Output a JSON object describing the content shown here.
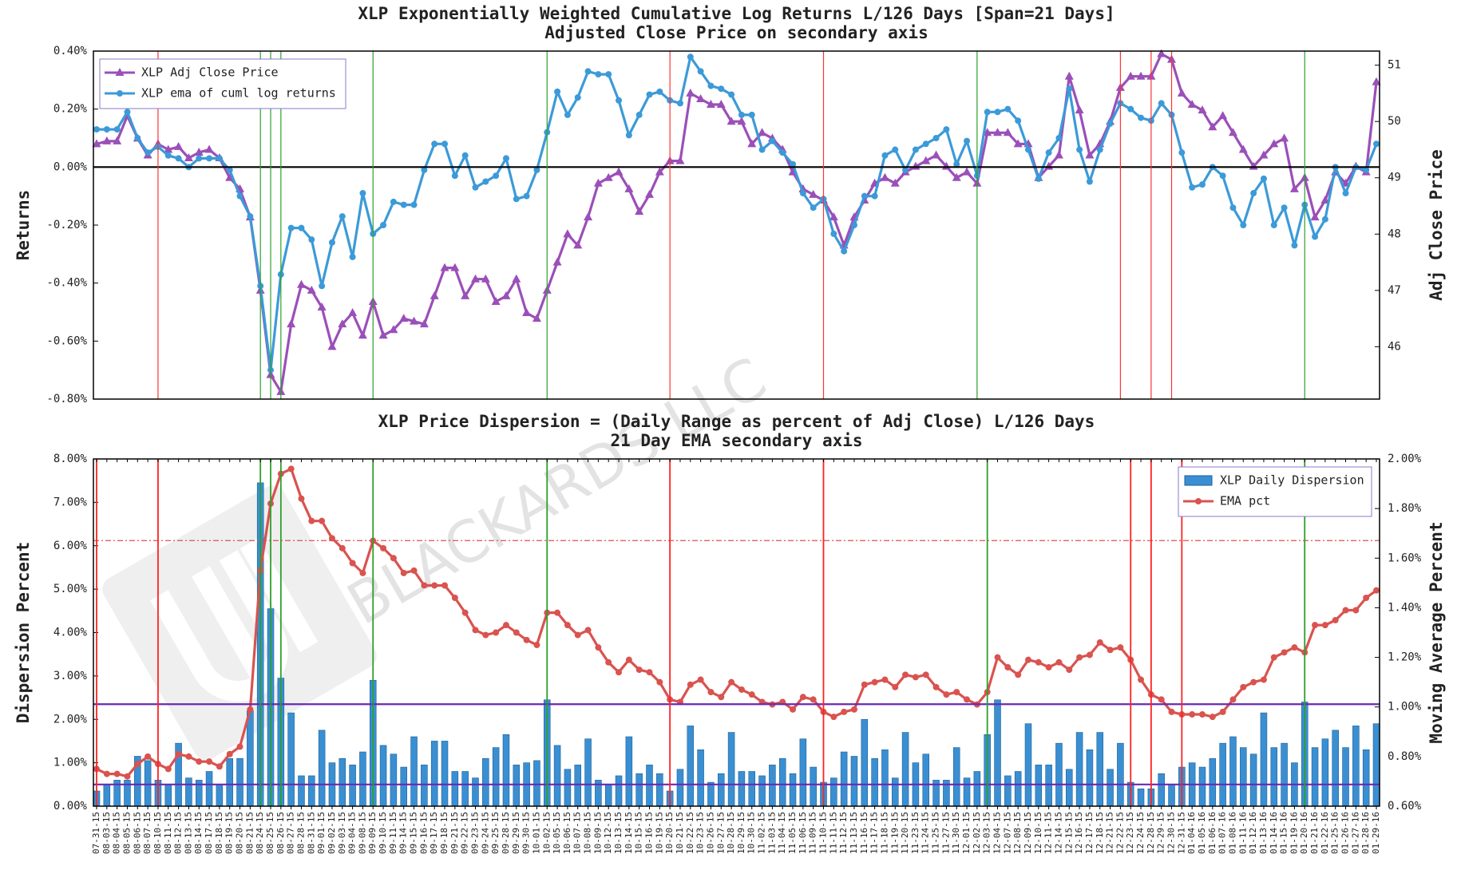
{
  "watermark": "BLACKARDS LLC",
  "chart_data": [
    {
      "type": "line",
      "title": "XLP Exponentially Weighted Cumulative Log Returns L/126 Days [Span=21 Days]",
      "subtitle": "Adjusted Close Price on secondary axis",
      "y_label": "Returns",
      "y2_label": "Adj Close Price",
      "ylim": [
        -0.8,
        0.4
      ],
      "yticks": [
        {
          "value": -0.8,
          "label": "-0.80%"
        },
        {
          "value": -0.6,
          "label": "-0.60%"
        },
        {
          "value": -0.4,
          "label": "-0.40%"
        },
        {
          "value": -0.2,
          "label": "-0.20%"
        },
        {
          "value": 0,
          "label": "0.00%"
        },
        {
          "value": 0.2,
          "label": "0.20%"
        },
        {
          "value": 0.4,
          "label": "0.40%"
        }
      ],
      "y2lim": [
        45.07,
        51.25
      ],
      "y2ticks": [
        46,
        47,
        48,
        49,
        50,
        51
      ],
      "legend": "upper left",
      "hlines": [
        {
          "value": 0,
          "color": "#000000"
        }
      ],
      "vlines": [
        {
          "x": "08-10-15",
          "color": "#ff3333"
        },
        {
          "x": "10-20-15",
          "color": "#ff3333"
        },
        {
          "x": "11-10-15",
          "color": "#ff3333"
        },
        {
          "x": "12-22-15",
          "color": "#ff3333"
        },
        {
          "x": "12-28-15",
          "color": "#ff3333"
        },
        {
          "x": "12-30-15",
          "color": "#ff3333"
        },
        {
          "x": "08-24-15",
          "color": "#2ca02c"
        },
        {
          "x": "08-25-15",
          "color": "#2ca02c"
        },
        {
          "x": "08-26-15",
          "color": "#2ca02c"
        },
        {
          "x": "09-09-15",
          "color": "#2ca02c"
        },
        {
          "x": "10-02-15",
          "color": "#2ca02c"
        },
        {
          "x": "12-02-15",
          "color": "#2ca02c"
        },
        {
          "x": "01-20-16",
          "color": "#2ca02c"
        }
      ],
      "series": [
        {
          "name": "XLP Adj Close Price",
          "color": "#9b4fb8",
          "marker": "triangle",
          "axis": "y2",
          "values": [
            49.6,
            49.65,
            49.65,
            50.1,
            49.7,
            49.4,
            49.6,
            49.5,
            49.55,
            49.35,
            49.45,
            49.5,
            49.35,
            49.0,
            48.8,
            48.3,
            47.0,
            45.5,
            45.2,
            46.4,
            47.1,
            47.0,
            46.7,
            46.0,
            46.4,
            46.6,
            46.2,
            46.8,
            46.2,
            46.3,
            46.5,
            46.45,
            46.4,
            46.9,
            47.4,
            47.4,
            46.9,
            47.2,
            47.2,
            46.8,
            46.9,
            47.2,
            46.6,
            46.5,
            47.0,
            47.5,
            48.0,
            47.8,
            48.3,
            48.9,
            49.0,
            49.1,
            48.8,
            48.4,
            48.7,
            49.1,
            49.3,
            49.3,
            50.5,
            50.4,
            50.3,
            50.3,
            50.0,
            50.0,
            49.6,
            49.8,
            49.7,
            49.5,
            49.1,
            48.8,
            48.7,
            48.6,
            48.3,
            47.8,
            48.3,
            48.6,
            48.9,
            49.0,
            48.9,
            49.1,
            49.2,
            49.3,
            49.4,
            49.2,
            49.0,
            49.1,
            48.9,
            49.8,
            49.8,
            49.8,
            49.6,
            49.6,
            49.0,
            49.2,
            49.4,
            50.8,
            50.2,
            49.4,
            49.6,
            50.0,
            50.6,
            50.8,
            50.8,
            50.8,
            51.2,
            51.1,
            50.5,
            50.3,
            50.2,
            49.9,
            50.1,
            49.8,
            49.5,
            49.2,
            49.4,
            49.6,
            49.7,
            48.8,
            49.0,
            48.3,
            48.6,
            49.1,
            48.9,
            49.2,
            49.1,
            50.7
          ]
        },
        {
          "name": "XLP ema of cuml log returns",
          "color": "#3c9ad8",
          "marker": "circle",
          "values": [
            0.13,
            0.13,
            0.13,
            0.19,
            0.1,
            0.05,
            0.07,
            0.04,
            0.03,
            0.0,
            0.03,
            0.03,
            0.03,
            -0.01,
            -0.1,
            -0.17,
            -0.41,
            -0.7,
            -0.37,
            -0.21,
            -0.21,
            -0.25,
            -0.41,
            -0.26,
            -0.17,
            -0.31,
            -0.09,
            -0.23,
            -0.2,
            -0.12,
            -0.13,
            -0.13,
            -0.01,
            0.08,
            0.08,
            -0.03,
            0.04,
            -0.07,
            -0.05,
            -0.03,
            0.03,
            -0.11,
            -0.1,
            -0.01,
            0.12,
            0.26,
            0.18,
            0.24,
            0.33,
            0.32,
            0.32,
            0.23,
            0.11,
            0.18,
            0.25,
            0.26,
            0.23,
            0.22,
            0.38,
            0.33,
            0.28,
            0.27,
            0.25,
            0.18,
            0.18,
            0.06,
            0.09,
            0.05,
            0.01,
            -0.09,
            -0.14,
            -0.11,
            -0.23,
            -0.29,
            -0.2,
            -0.1,
            -0.1,
            0.04,
            0.06,
            -0.01,
            0.06,
            0.08,
            0.1,
            0.13,
            0.01,
            0.09,
            -0.03,
            0.19,
            0.19,
            0.2,
            0.16,
            0.06,
            -0.04,
            0.05,
            0.1,
            0.27,
            0.06,
            -0.05,
            0.06,
            0.15,
            0.22,
            0.2,
            0.17,
            0.16,
            0.22,
            0.18,
            0.05,
            -0.07,
            -0.06,
            0.0,
            -0.03,
            -0.14,
            -0.2,
            -0.09,
            -0.04,
            -0.2,
            -0.14,
            -0.27,
            -0.13,
            -0.24,
            -0.18,
            0.0,
            -0.09,
            0.0,
            -0.01,
            0.08
          ]
        }
      ]
    },
    {
      "type": "bar",
      "title": "XLP Price Dispersion = (Daily Range as percent of Adj Close) L/126 Days",
      "subtitle": "21 Day EMA secondary axis",
      "y_label": "Dispersion Percent",
      "y2_label": "Moving Average Percent",
      "categories": [
        "07-31-15",
        "08-03-15",
        "08-04-15",
        "08-05-15",
        "08-06-15",
        "08-07-15",
        "08-10-15",
        "08-11-15",
        "08-12-15",
        "08-13-15",
        "08-14-15",
        "08-17-15",
        "08-18-15",
        "08-19-15",
        "08-20-15",
        "08-21-15",
        "08-24-15",
        "08-25-15",
        "08-26-15",
        "08-27-15",
        "08-28-15",
        "08-31-15",
        "09-01-15",
        "09-02-15",
        "09-03-15",
        "09-04-15",
        "09-08-15",
        "09-09-15",
        "09-10-15",
        "09-11-15",
        "09-14-15",
        "09-15-15",
        "09-16-15",
        "09-17-15",
        "09-18-15",
        "09-21-15",
        "09-22-15",
        "09-23-15",
        "09-24-15",
        "09-25-15",
        "09-28-15",
        "09-29-15",
        "09-30-15",
        "10-01-15",
        "10-02-15",
        "10-05-15",
        "10-06-15",
        "10-07-15",
        "10-08-15",
        "10-09-15",
        "10-12-15",
        "10-13-15",
        "10-14-15",
        "10-15-15",
        "10-16-15",
        "10-19-15",
        "10-20-15",
        "10-21-15",
        "10-22-15",
        "10-23-15",
        "10-26-15",
        "10-27-15",
        "10-28-15",
        "10-29-15",
        "10-30-15",
        "11-02-15",
        "11-03-15",
        "11-04-15",
        "11-05-15",
        "11-06-15",
        "11-09-15",
        "11-10-15",
        "11-11-15",
        "11-12-15",
        "11-13-15",
        "11-16-15",
        "11-17-15",
        "11-18-15",
        "11-19-15",
        "11-20-15",
        "11-23-15",
        "11-24-15",
        "11-25-15",
        "11-27-15",
        "11-30-15",
        "12-01-15",
        "12-02-15",
        "12-03-15",
        "12-04-15",
        "12-07-15",
        "12-08-15",
        "12-09-15",
        "12-10-15",
        "12-11-15",
        "12-14-15",
        "12-15-15",
        "12-16-15",
        "12-17-15",
        "12-18-15",
        "12-21-15",
        "12-22-15",
        "12-23-15",
        "12-24-15",
        "12-28-15",
        "12-29-15",
        "12-30-15",
        "12-31-15",
        "01-04-16",
        "01-05-16",
        "01-06-16",
        "01-07-16",
        "01-08-16",
        "01-11-16",
        "01-12-16",
        "01-13-16",
        "01-14-16",
        "01-15-16",
        "01-19-16",
        "01-20-16",
        "01-21-16",
        "01-22-16",
        "01-25-16",
        "01-26-16",
        "01-27-16",
        "01-28-16",
        "01-29-16"
      ],
      "ylim": [
        0,
        8
      ],
      "yticks": [
        {
          "value": 0,
          "label": "0.00%"
        },
        {
          "value": 1,
          "label": "1.00%"
        },
        {
          "value": 2,
          "label": "2.00%"
        },
        {
          "value": 3,
          "label": "3.00%"
        },
        {
          "value": 4,
          "label": "4.00%"
        },
        {
          "value": 5,
          "label": "5.00%"
        },
        {
          "value": 6,
          "label": "6.00%"
        },
        {
          "value": 7,
          "label": "7.00%"
        },
        {
          "value": 8,
          "label": "8.00%"
        }
      ],
      "y2lim": [
        0.6,
        2.0
      ],
      "y2ticks": [
        {
          "value": 0.6,
          "label": "0.60%"
        },
        {
          "value": 0.8,
          "label": "0.80%"
        },
        {
          "value": 1.0,
          "label": "1.00%"
        },
        {
          "value": 1.2,
          "label": "1.20%"
        },
        {
          "value": 1.4,
          "label": "1.40%"
        },
        {
          "value": 1.6,
          "label": "1.60%"
        },
        {
          "value": 1.8,
          "label": "1.80%"
        },
        {
          "value": 2.0,
          "label": "2.00%"
        }
      ],
      "legend": "upper right",
      "hlines": [
        {
          "value": 2.35,
          "color": "#6a28b5"
        },
        {
          "value": 0.5,
          "color": "#6a28b5"
        },
        {
          "value": 6.12,
          "color": "#d9534f",
          "style": "dashdot"
        }
      ],
      "vlines": [
        {
          "x": "07-31-15",
          "color": "#ff2222"
        },
        {
          "x": "08-10-15",
          "color": "#ff2222"
        },
        {
          "x": "10-20-15",
          "color": "#ff2222"
        },
        {
          "x": "11-10-15",
          "color": "#ff2222"
        },
        {
          "x": "12-23-15",
          "color": "#ff2222"
        },
        {
          "x": "12-28-15",
          "color": "#ff2222"
        },
        {
          "x": "12-31-15",
          "color": "#ff2222"
        },
        {
          "x": "08-24-15",
          "color": "#2ca02c"
        },
        {
          "x": "08-25-15",
          "color": "#2ca02c"
        },
        {
          "x": "08-26-15",
          "color": "#2ca02c"
        },
        {
          "x": "09-09-15",
          "color": "#2ca02c"
        },
        {
          "x": "10-02-15",
          "color": "#2ca02c"
        },
        {
          "x": "12-03-15",
          "color": "#2ca02c"
        },
        {
          "x": "01-20-16",
          "color": "#2ca02c"
        }
      ],
      "series": [
        {
          "name": "XLP Daily Dispersion",
          "type": "bar",
          "color": "#3a8fd3",
          "values": [
            0.35,
            0.5,
            0.6,
            0.6,
            1.15,
            1.05,
            0.6,
            0.5,
            1.45,
            0.65,
            0.6,
            0.8,
            0.5,
            1.1,
            1.1,
            2.2,
            7.45,
            4.55,
            2.95,
            2.15,
            0.7,
            0.7,
            1.75,
            1.0,
            1.1,
            0.95,
            1.25,
            2.9,
            1.4,
            1.2,
            0.9,
            1.6,
            0.95,
            1.5,
            1.5,
            0.8,
            0.8,
            0.65,
            1.1,
            1.35,
            1.65,
            0.95,
            1.0,
            1.05,
            2.45,
            1.4,
            0.85,
            0.95,
            1.55,
            0.6,
            0.5,
            0.7,
            1.6,
            0.75,
            0.95,
            0.75,
            0.35,
            0.85,
            1.85,
            1.3,
            0.55,
            0.75,
            1.7,
            0.8,
            0.8,
            0.7,
            0.95,
            1.1,
            0.75,
            1.55,
            0.9,
            0.55,
            0.65,
            1.25,
            1.15,
            2.0,
            1.1,
            1.3,
            0.65,
            1.7,
            1.0,
            1.2,
            0.6,
            0.6,
            1.35,
            0.65,
            0.8,
            1.65,
            2.45,
            0.7,
            0.8,
            1.9,
            0.95,
            0.95,
            1.45,
            0.85,
            1.7,
            1.3,
            1.7,
            0.85,
            1.45,
            0.55,
            0.4,
            0.4,
            0.75,
            0.5,
            0.9,
            1.0,
            0.9,
            1.1,
            1.45,
            1.6,
            1.35,
            1.2,
            2.15,
            1.35,
            1.45,
            1.0,
            2.4,
            1.35,
            1.55,
            1.75,
            1.35,
            1.85,
            1.3,
            1.9
          ]
        },
        {
          "name": "EMA pct",
          "type": "line",
          "color": "#d9534f",
          "marker": "circle",
          "axis": "y2",
          "values": [
            0.75,
            0.73,
            0.73,
            0.72,
            0.77,
            0.8,
            0.77,
            0.75,
            0.81,
            0.8,
            0.78,
            0.78,
            0.76,
            0.81,
            0.84,
            0.99,
            1.55,
            1.82,
            1.94,
            1.96,
            1.84,
            1.75,
            1.75,
            1.68,
            1.64,
            1.58,
            1.54,
            1.67,
            1.64,
            1.6,
            1.54,
            1.55,
            1.49,
            1.49,
            1.49,
            1.44,
            1.38,
            1.31,
            1.29,
            1.3,
            1.33,
            1.3,
            1.27,
            1.25,
            1.38,
            1.38,
            1.33,
            1.29,
            1.31,
            1.24,
            1.18,
            1.14,
            1.19,
            1.15,
            1.14,
            1.1,
            1.03,
            1.02,
            1.09,
            1.11,
            1.06,
            1.04,
            1.1,
            1.07,
            1.05,
            1.02,
            1.01,
            1.02,
            0.99,
            1.04,
            1.03,
            0.98,
            0.96,
            0.98,
            0.99,
            1.09,
            1.1,
            1.11,
            1.08,
            1.13,
            1.12,
            1.13,
            1.08,
            1.05,
            1.06,
            1.03,
            1.01,
            1.06,
            1.2,
            1.16,
            1.13,
            1.19,
            1.18,
            1.16,
            1.18,
            1.15,
            1.2,
            1.21,
            1.26,
            1.23,
            1.24,
            1.19,
            1.11,
            1.05,
            1.03,
            0.98,
            0.97,
            0.97,
            0.97,
            0.96,
            0.98,
            1.03,
            1.08,
            1.1,
            1.11,
            1.2,
            1.22,
            1.24,
            1.22,
            1.33,
            1.33,
            1.35,
            1.39,
            1.39,
            1.44,
            1.47
          ]
        }
      ]
    }
  ]
}
